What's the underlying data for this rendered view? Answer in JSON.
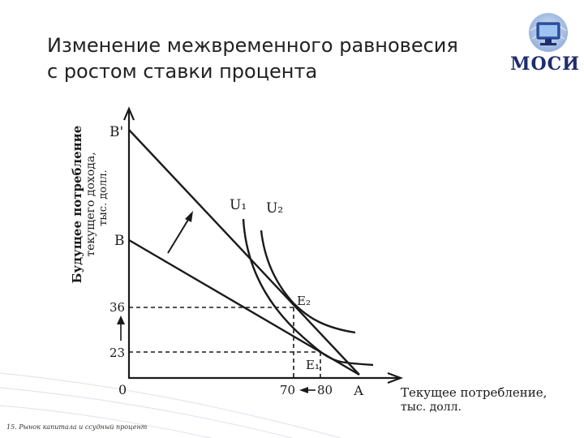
{
  "title": {
    "line1": "Изменение межвременного равновесия",
    "line2": "с ростом ставки процента"
  },
  "logo": {
    "text": "МОСИ",
    "icon": "globe-monitor-icon"
  },
  "diagram": {
    "y_axis_label_lines": [
      "Будущее потребление",
      "текущего дохода,",
      "тыс. долл."
    ],
    "x_axis_label_lines": [
      "Текущее потребление,",
      "тыс. долл."
    ],
    "origin": "0",
    "y_ticks": [
      "36",
      "23"
    ],
    "x_ticks": [
      "70",
      "80"
    ],
    "points": {
      "b_prime": "В'",
      "b": "В",
      "a": "А",
      "u1": "U₁",
      "u2": "U₂",
      "e2": "E₂",
      "e1": "E₁"
    }
  },
  "footer": "15. Рынок капитала и ссудный процент",
  "colors": {
    "ink": "#1a1a1a",
    "title": "#222222",
    "logo": "#1f2d6d"
  }
}
